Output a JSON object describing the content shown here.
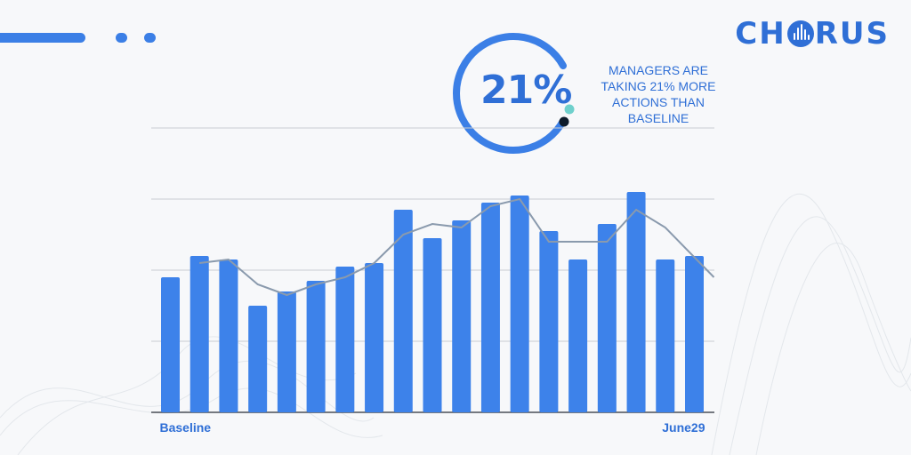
{
  "brand": {
    "logo_text_left": "CH",
    "logo_text_right": "RUS",
    "logo_icon": "sound-wave-icon",
    "color": "#2f6fd6"
  },
  "headline": {
    "value": "21%",
    "note": "MANAGERS ARE TAKING 21% MORE ACTIONS THAN BASELINE"
  },
  "chart_data": {
    "type": "bar",
    "categories": [
      "Baseline",
      "",
      "",
      "",
      "",
      "",
      "",
      "",
      "",
      "",
      "",
      "",
      "",
      "",
      "",
      "",
      "",
      "",
      "June29"
    ],
    "series": [
      {
        "type": "bar",
        "values": [
          38,
          44,
          43,
          30,
          34,
          37,
          41,
          42,
          57,
          49,
          54,
          59,
          61,
          51,
          43,
          53,
          62,
          43,
          44
        ]
      },
      {
        "type": "line",
        "values": [
          null,
          42,
          43,
          36,
          33,
          36,
          38,
          42,
          50,
          53,
          52,
          58,
          60,
          48,
          48,
          48,
          57,
          52,
          38
        ]
      }
    ],
    "x_tick_labels": [
      "Baseline",
      "June29"
    ],
    "ylim": [
      0,
      80
    ],
    "grid": true,
    "colors": {
      "bar": "#3d82ea",
      "line": "#8a9aad",
      "grid": "#c9cdd3"
    }
  }
}
